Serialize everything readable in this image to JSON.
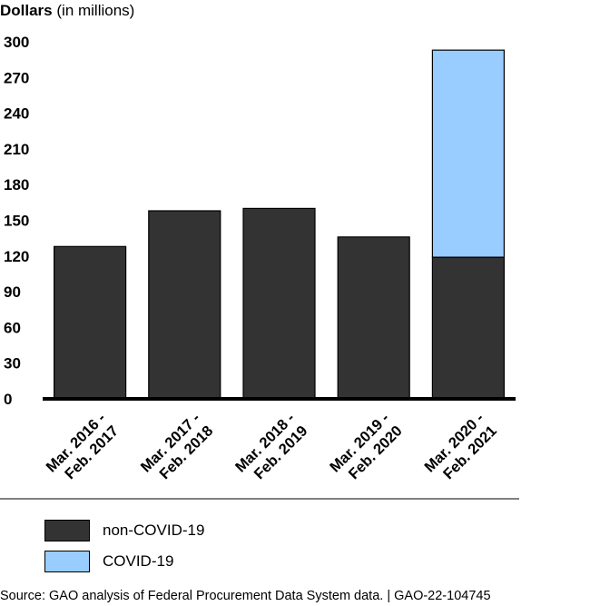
{
  "chart_data": {
    "type": "bar",
    "stacked": true,
    "title": "",
    "ylabel_bold": "Dollars",
    "ylabel_rest": "(in millions)",
    "xlabel": "",
    "ylim": [
      0,
      300
    ],
    "yticks": [
      "0",
      "30",
      "60",
      "90",
      "120",
      "150",
      "180",
      "210",
      "240",
      "270",
      "300"
    ],
    "categories": [
      [
        "Mar. 2016 -",
        "Feb. 2017"
      ],
      [
        "Mar. 2017 -",
        "Feb. 2018"
      ],
      [
        "Mar. 2018 -",
        "Feb. 2019"
      ],
      [
        "Mar. 2019 -",
        "Feb. 2020"
      ],
      [
        "Mar. 2020 -",
        "Feb. 2021"
      ]
    ],
    "series": [
      {
        "name": "non-COVID-19",
        "color": "#333333",
        "values": [
          128,
          158,
          160,
          136,
          119
        ]
      },
      {
        "name": "COVID-19",
        "color": "#99ccff",
        "values": [
          0,
          0,
          0,
          0,
          174
        ]
      }
    ],
    "grid": false,
    "legend_position": "bottom-left"
  },
  "legend": {
    "items": [
      {
        "label": "non-COVID-19",
        "color": "#333333"
      },
      {
        "label": "COVID-19",
        "color": "#99ccff"
      }
    ]
  },
  "source": "Source: GAO analysis of Federal Procurement Data System data. | GAO-22-104745"
}
